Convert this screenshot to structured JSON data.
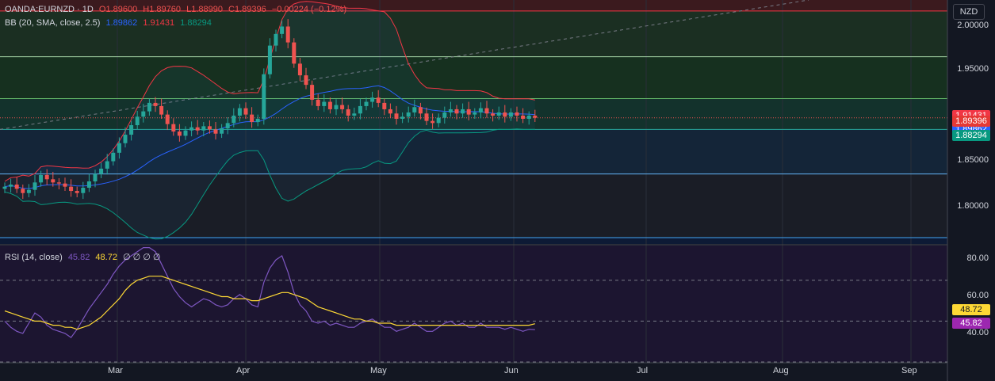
{
  "legend": {
    "symbol": "OANDA:EURNZD · 1D",
    "open": "O1.89600",
    "high": "H1.89760",
    "low": "L1.88990",
    "close": "C1.89396",
    "change": "−0.00224 (−0.12%)",
    "bb_label": "BB (20, SMA, close, 2.5)",
    "bb_basis": "1.89862",
    "bb_upper": "1.91431",
    "bb_lower": "1.88294",
    "rsi_label": "RSI (14, close)",
    "rsi_value": "45.82",
    "rsi_ma": "48.72",
    "rsi_extra": "∅ ∅ ∅ ∅"
  },
  "currency_button": "NZD",
  "price_tags": {
    "upper": "1.91431",
    "basis": "1.89862",
    "close": "1.89396",
    "lower": "1.88294"
  },
  "rsi_tags": {
    "ma": "48.72",
    "rsi": "45.82"
  },
  "colors": {
    "background": "#131722",
    "up": "#26a69a",
    "down": "#ef5350",
    "bb_upper": "#f23645",
    "bb_basis": "#2962ff",
    "bb_lower": "#089981",
    "rsi": "#7e57c2",
    "rsi_ma": "#fdd835"
  },
  "chart_data": [
    {
      "type": "candlestick",
      "title": "OANDA:EURNZD · 1D",
      "y_axis_ticks": [
        "2.00000",
        "1.95000",
        "1.85000",
        "1.80000"
      ],
      "x_axis_ticks": [
        "Mar",
        "Apr",
        "May",
        "Jun",
        "Jul",
        "Aug",
        "Sep"
      ],
      "ylim": [
        1.775,
        2.005
      ],
      "horizontal_levels": [
        1.9946,
        1.9515,
        1.912,
        1.883,
        1.841,
        1.781
      ],
      "close_series": [
        1.829,
        1.831,
        1.827,
        1.823,
        1.826,
        1.833,
        1.84,
        1.836,
        1.833,
        1.832,
        1.829,
        1.825,
        1.823,
        1.828,
        1.834,
        1.841,
        1.846,
        1.853,
        1.861,
        1.87,
        1.878,
        1.887,
        1.895,
        1.9,
        1.908,
        1.905,
        1.897,
        1.888,
        1.881,
        1.877,
        1.882,
        1.885,
        1.882,
        1.886,
        1.883,
        1.879,
        1.884,
        1.889,
        1.896,
        1.903,
        1.897,
        1.89,
        1.893,
        1.935,
        1.962,
        1.973,
        1.98,
        1.965,
        1.945,
        1.934,
        1.925,
        1.911,
        1.905,
        1.909,
        1.902,
        1.906,
        1.902,
        1.896,
        1.898,
        1.905,
        1.909,
        1.913,
        1.908,
        1.902,
        1.898,
        1.893,
        1.895,
        1.899,
        1.904,
        1.898,
        1.891,
        1.889,
        1.894,
        1.899,
        1.902,
        1.898,
        1.902,
        1.897,
        1.899,
        1.903,
        1.898,
        1.896,
        1.899,
        1.895,
        1.899,
        1.896,
        1.893,
        1.896,
        1.894
      ]
    },
    {
      "type": "line",
      "title": "RSI (14, close)",
      "y_axis_ticks": [
        "80.00",
        "60.00",
        "40.00"
      ],
      "ylim": [
        30,
        87
      ],
      "band_levels": [
        70,
        50,
        30
      ],
      "series": [
        {
          "name": "RSI",
          "values": [
            50,
            47,
            45,
            44,
            49,
            54,
            52,
            48,
            46,
            45,
            44,
            42,
            46,
            51,
            56,
            60,
            64,
            68,
            73,
            77,
            80,
            82,
            84,
            86,
            86,
            84,
            78,
            72,
            66,
            62,
            59,
            57,
            59,
            61,
            60,
            58,
            57,
            58,
            61,
            63,
            61,
            58,
            57,
            69,
            76,
            80,
            82,
            74,
            64,
            58,
            55,
            50,
            49,
            50,
            48,
            49,
            48,
            47,
            47,
            49,
            50,
            51,
            49,
            47,
            47,
            45,
            46,
            47,
            49,
            47,
            45,
            45,
            47,
            49,
            50,
            48,
            49,
            47,
            47,
            49,
            47,
            47,
            47,
            46,
            47,
            46,
            45,
            46,
            45.82
          ]
        },
        {
          "name": "RSI-based MA",
          "values": [
            55,
            54,
            53,
            52,
            51,
            50,
            50,
            49,
            48,
            48,
            47,
            47,
            46,
            47,
            48,
            50,
            52,
            55,
            58,
            61,
            65,
            68,
            70,
            71,
            72,
            72,
            72,
            71,
            70,
            69,
            68,
            67,
            66,
            65,
            64,
            63,
            62,
            62,
            61,
            61,
            61,
            60,
            60,
            61,
            62,
            63,
            64,
            64,
            63,
            62,
            61,
            59,
            57,
            56,
            55,
            54,
            53,
            52,
            51,
            51,
            50,
            50,
            49,
            49,
            49,
            48,
            48,
            48,
            48,
            48,
            48,
            48,
            48,
            48,
            48,
            48,
            48,
            48,
            48,
            48,
            48,
            48,
            48,
            48,
            48,
            48,
            48,
            48,
            48.72
          ]
        }
      ]
    }
  ]
}
